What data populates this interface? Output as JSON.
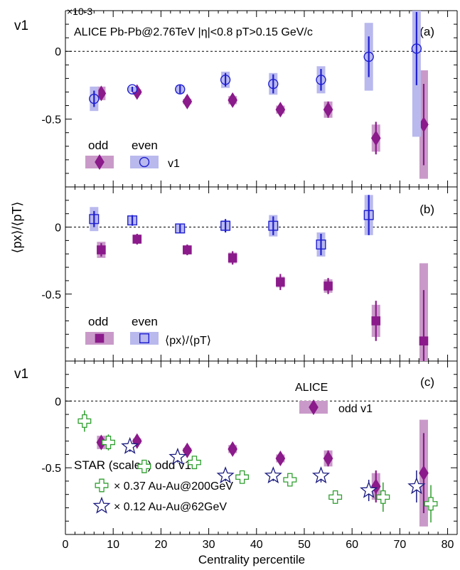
{
  "figure": {
    "x_axis_label": "Centrality percentile",
    "x_ticks": [
      "0",
      "10",
      "20",
      "30",
      "40",
      "50",
      "60",
      "70",
      "80"
    ],
    "colors": {
      "alice_odd": "#8b1a8b",
      "alice_odd_band": "#c99ac9",
      "alice_even": "#1f1fd0",
      "alice_even_band": "#b9b9ee",
      "star_200": "#2e9e2e",
      "star_62": "#1a1a80"
    }
  },
  "chart_data": [
    {
      "type": "scatter",
      "panel_label": "(a)",
      "ylabel": "v1",
      "scale_label": "×10-3",
      "annotation": "ALICE Pb-Pb@2.76TeV  |η|<0.8 pT>0.15 GeV/c",
      "y_ticks": [
        "0",
        "-0.5"
      ],
      "ylim": [
        -1.0,
        0.3
      ],
      "xlim": [
        0,
        82
      ],
      "legend": {
        "odd_label": "odd",
        "even_label": "even",
        "quantity": "v1"
      },
      "series": [
        {
          "name": "odd",
          "marker": "diamond",
          "x": [
            7.5,
            15,
            25.5,
            35,
            45,
            55,
            65,
            75
          ],
          "y": [
            -0.31,
            -0.3,
            -0.37,
            -0.36,
            -0.43,
            -0.43,
            -0.64,
            -0.54
          ],
          "stat": [
            0.04,
            0.03,
            0.03,
            0.04,
            0.04,
            0.06,
            0.12,
            0.3
          ],
          "sys": [
            0.05,
            0.02,
            0.02,
            0.03,
            0.03,
            0.06,
            0.1,
            0.4
          ]
        },
        {
          "name": "even",
          "marker": "circle",
          "x": [
            6,
            14,
            24,
            33.5,
            43.5,
            53.5,
            63.5,
            73.5
          ],
          "y": [
            -0.35,
            -0.28,
            -0.28,
            -0.21,
            -0.24,
            -0.21,
            -0.04,
            0.02
          ],
          "stat": [
            0.06,
            0.02,
            0.03,
            0.05,
            0.07,
            0.08,
            0.15,
            0.27
          ],
          "sys": [
            0.09,
            0.02,
            0.03,
            0.06,
            0.08,
            0.1,
            0.25,
            0.65
          ]
        }
      ]
    },
    {
      "type": "scatter",
      "panel_label": "(b)",
      "ylabel": "⟨px⟩/⟨pT⟩",
      "y_ticks": [
        "0",
        "-0.5"
      ],
      "ylim": [
        -1.0,
        0.3
      ],
      "xlim": [
        0,
        82
      ],
      "legend": {
        "odd_label": "odd",
        "even_label": "even",
        "quantity": "⟨px⟩/⟨pT⟩"
      },
      "series": [
        {
          "name": "odd",
          "marker": "square",
          "x": [
            7.5,
            15,
            25.5,
            35,
            45,
            55,
            65,
            75
          ],
          "y": [
            -0.17,
            -0.09,
            -0.17,
            -0.23,
            -0.41,
            -0.44,
            -0.7,
            -0.85
          ],
          "stat": [
            0.05,
            0.04,
            0.04,
            0.05,
            0.06,
            0.06,
            0.15,
            0.38
          ],
          "sys": [
            0.06,
            0.03,
            0.03,
            0.04,
            0.04,
            0.05,
            0.12,
            0.58
          ]
        },
        {
          "name": "even",
          "marker": "open-square",
          "x": [
            6,
            14,
            24,
            33.5,
            43.5,
            53.5,
            63.5
          ],
          "y": [
            0.06,
            0.05,
            -0.01,
            0.01,
            0.01,
            -0.13,
            0.09
          ],
          "stat": [
            0.06,
            0.04,
            0.03,
            0.05,
            0.07,
            0.08,
            0.15
          ],
          "sys": [
            0.09,
            0.03,
            0.03,
            0.04,
            0.08,
            0.09,
            0.15
          ]
        }
      ]
    },
    {
      "type": "scatter",
      "panel_label": "(c)",
      "ylabel": "v1",
      "y_ticks": [
        "0",
        "-0.5"
      ],
      "ylim": [
        -1.0,
        0.3
      ],
      "xlim": [
        0,
        82
      ],
      "alice_legend": {
        "title": "ALICE",
        "entry": "odd v1"
      },
      "star_legend": {
        "title": "STAR (scaled) odd v1",
        "entry_200": "× 0.37  Au-Au@200GeV",
        "entry_62": "× 0.12  Au-Au@62GeV"
      },
      "series": [
        {
          "name": "odd v1",
          "marker": "diamond",
          "x": [
            7.5,
            15,
            25.5,
            35,
            45,
            55,
            65,
            75
          ],
          "y": [
            -0.31,
            -0.3,
            -0.37,
            -0.36,
            -0.43,
            -0.43,
            -0.64,
            -0.54
          ],
          "stat": [
            0.04,
            0.03,
            0.03,
            0.04,
            0.04,
            0.06,
            0.12,
            0.3
          ],
          "sys": [
            0.05,
            0.02,
            0.02,
            0.03,
            0.03,
            0.06,
            0.1,
            0.4
          ]
        },
        {
          "name": "× 0.37  Au-Au@200GeV",
          "marker": "open-cross",
          "x": [
            4,
            9,
            16.5,
            27,
            37,
            47,
            56.5,
            66.5,
            76.5
          ],
          "y": [
            -0.15,
            -0.31,
            -0.49,
            -0.46,
            -0.57,
            -0.59,
            -0.72,
            -0.72,
            -0.77
          ],
          "stat": [
            0.08,
            0.06,
            0.03,
            0.03,
            0.03,
            0.04,
            0.05,
            0.11,
            0.14
          ]
        },
        {
          "name": "× 0.12  Au-Au@62GeV",
          "marker": "open-star",
          "x": [
            13.5,
            23.5,
            33.5,
            43.5,
            53.5,
            63.5,
            73.5
          ],
          "y": [
            -0.34,
            -0.42,
            -0.56,
            -0.56,
            -0.56,
            -0.67,
            -0.64
          ],
          "stat": [
            0.04,
            0.04,
            0.04,
            0.04,
            0.05,
            0.08,
            0.12
          ]
        }
      ]
    }
  ]
}
